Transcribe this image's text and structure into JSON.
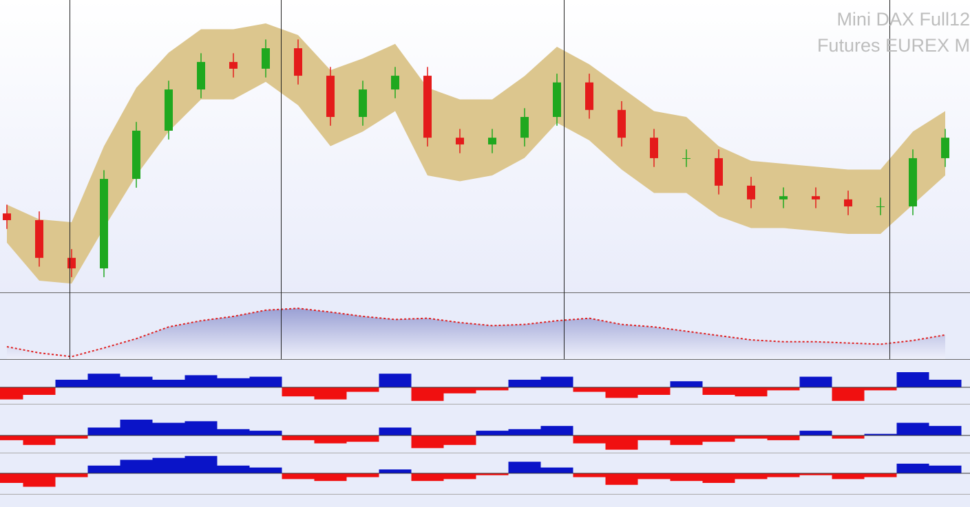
{
  "chart_data": {
    "type": "candlestick",
    "title": "Mini DAX Full12",
    "subtitle": "Futures EUREX M",
    "open": [
      27,
      24.7,
      11.8,
      8.2,
      38.8,
      55.3,
      69.4,
      78.8,
      76.5,
      83.5,
      74.1,
      60,
      69.4,
      74.1,
      52.9,
      50.6,
      52.9,
      60,
      71.8,
      62.4,
      52.9,
      45.9,
      45.9,
      36.5,
      31.8,
      32.9,
      31.8,
      29.4,
      29.4,
      45.9
    ],
    "high": [
      30,
      27.7,
      14.8,
      41.8,
      58.3,
      72.4,
      81.8,
      81.8,
      86.5,
      86.5,
      77.1,
      72.4,
      77.1,
      77.1,
      55.9,
      55.9,
      63,
      74.8,
      74.8,
      65.4,
      55.9,
      48.9,
      48.9,
      39.5,
      35.9,
      35.9,
      34.8,
      32.4,
      48.9,
      55.9
    ],
    "low": [
      21.7,
      8.8,
      5.2,
      5.2,
      35.8,
      52.3,
      66.4,
      73.5,
      73.5,
      71.1,
      57,
      57,
      66.4,
      49.9,
      47.6,
      47.6,
      49.9,
      57,
      59.4,
      49.9,
      42.9,
      42.9,
      33.5,
      28.8,
      28.8,
      28.8,
      26.4,
      26.4,
      26.4,
      42.9
    ],
    "close": [
      24.7,
      11.8,
      8.2,
      38.8,
      55.3,
      69.4,
      78.8,
      76.5,
      83.5,
      74.1,
      60,
      69.4,
      74.1,
      52.9,
      50.6,
      52.9,
      60,
      71.8,
      62.4,
      52.9,
      45.9,
      45.9,
      36.5,
      31.8,
      32.9,
      31.8,
      29.4,
      29.4,
      45.9,
      52.9
    ],
    "band_upper": [
      30,
      25,
      24,
      50,
      70,
      82,
      90,
      90,
      92,
      88,
      76,
      80,
      85,
      70,
      66,
      66,
      74,
      84,
      78,
      70,
      62,
      60,
      50,
      45,
      44,
      43,
      42,
      42,
      55,
      62
    ],
    "band_lower": [
      17,
      4,
      3,
      22,
      40,
      55,
      66,
      66,
      72,
      64,
      50,
      55,
      62,
      40,
      38,
      40,
      46,
      58,
      52,
      42,
      34,
      34,
      26,
      22,
      22,
      21,
      20,
      20,
      30,
      40
    ],
    "ylim": [
      0,
      100
    ],
    "up_color": "#1fa81f",
    "down_color": "#e41b1b",
    "band_color": "#dcc68e",
    "trend": {
      "values": [
        20,
        10,
        4,
        18,
        33,
        52,
        62,
        69,
        79,
        82,
        76,
        69,
        64,
        66,
        59,
        54,
        56,
        62,
        66,
        56,
        52,
        45,
        38,
        31,
        28,
        28,
        26,
        24,
        30,
        39
      ],
      "ylim": [
        0,
        100
      ],
      "color": "#9da3d6"
    },
    "oscillators": [
      {
        "values": [
          -0.8,
          -0.5,
          0.5,
          0.9,
          0.7,
          0.5,
          0.8,
          0.6,
          0.7,
          -0.6,
          -0.8,
          -0.3,
          0.9,
          -0.9,
          -0.4,
          -0.2,
          0.5,
          0.7,
          -0.3,
          -0.7,
          -0.5,
          0.4,
          -0.5,
          -0.6,
          -0.2,
          0.7,
          -0.9,
          -0.2,
          1,
          0.5
        ]
      },
      {
        "values": [
          -0.3,
          -0.6,
          -0.2,
          0.5,
          1,
          0.8,
          0.9,
          0.4,
          0.3,
          -0.3,
          -0.5,
          -0.4,
          0.5,
          -0.8,
          -0.6,
          0.3,
          0.4,
          0.6,
          -0.5,
          -0.9,
          -0.3,
          -0.6,
          -0.4,
          -0.2,
          -0.3,
          0.3,
          -0.2,
          0.1,
          0.8,
          0.6
        ]
      },
      {
        "values": [
          -0.5,
          -0.7,
          -0.2,
          0.4,
          0.7,
          0.8,
          0.9,
          0.4,
          0.3,
          -0.3,
          -0.4,
          -0.2,
          0.2,
          -0.4,
          -0.3,
          -0.1,
          0.6,
          0.3,
          -0.2,
          -0.6,
          -0.3,
          -0.4,
          -0.5,
          -0.3,
          -0.2,
          -0.1,
          -0.3,
          -0.2,
          0.5,
          0.4
        ]
      }
    ],
    "osc_ylim": [
      -1,
      1
    ],
    "osc_pos_color": "#0a14c8",
    "osc_neg_color": "#f01010"
  }
}
